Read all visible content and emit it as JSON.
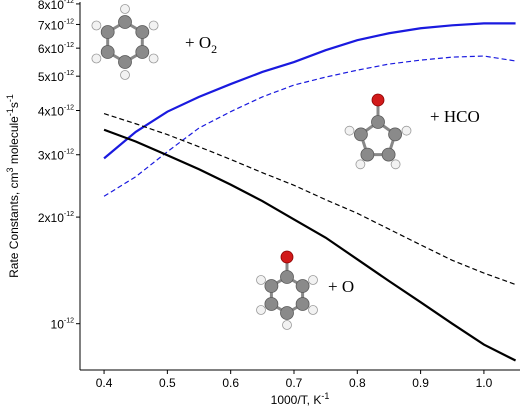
{
  "chart_data": {
    "type": "line",
    "xlabel": [
      "1000/T, K",
      "-1"
    ],
    "ylabel": [
      "Rate Constants, cm",
      "3",
      " molecule",
      "-1",
      "s",
      "-1"
    ],
    "x": [
      0.4,
      0.45,
      0.5,
      0.55,
      0.6,
      0.65,
      0.7,
      0.75,
      0.8,
      0.85,
      0.9,
      0.95,
      1.0,
      1.05
    ],
    "series": [
      {
        "color": "#1a1adf",
        "dashed": false,
        "values": [
          2.93e-12,
          3.48e-12,
          3.97e-12,
          4.37e-12,
          4.75e-12,
          5.14e-12,
          5.48e-12,
          5.92e-12,
          6.32e-12,
          6.61e-12,
          6.83e-12,
          6.96e-12,
          7.05e-12,
          7.05e-12
        ]
      },
      {
        "color": "#1a1adf",
        "dashed": true,
        "values": [
          2.29e-12,
          2.6e-12,
          3.06e-12,
          3.57e-12,
          3.97e-12,
          4.37e-12,
          4.72e-12,
          4.97e-12,
          5.2e-12,
          5.41e-12,
          5.55e-12,
          5.66e-12,
          5.7e-12,
          5.52e-12
        ]
      },
      {
        "color": "#000000",
        "dashed": false,
        "values": [
          3.53e-12,
          3.27e-12,
          2.99e-12,
          2.73e-12,
          2.47e-12,
          2.22e-12,
          1.97e-12,
          1.75e-12,
          1.52e-12,
          1.32e-12,
          1.15e-12,
          1e-12,
          8.73e-13,
          7.87e-13
        ]
      },
      {
        "color": "#000000",
        "dashed": true,
        "values": [
          3.92e-12,
          3.67e-12,
          3.42e-12,
          3.16e-12,
          2.91e-12,
          2.67e-12,
          2.46e-12,
          2.24e-12,
          2.05e-12,
          1.85e-12,
          1.67e-12,
          1.51e-12,
          1.39e-12,
          1.29e-12
        ]
      }
    ],
    "xlim": [
      0.362,
      1.057
    ],
    "xticks": [
      0.4,
      0.5,
      0.6,
      0.7,
      0.8,
      0.9,
      {
        "value": 1.0,
        "label": "1.0"
      }
    ],
    "ylim": [
      7.4e-13,
      8.1e-12
    ],
    "log_y": true,
    "yticks": [
      {
        "value": 1e-12,
        "label": "10",
        "sup": "-12"
      },
      {
        "value": 2e-12,
        "label": "2x10",
        "sup": "-12"
      },
      {
        "value": 3e-12,
        "label": "3x10",
        "sup": "-12"
      },
      {
        "value": 4e-12,
        "label": "4x10",
        "sup": "-12"
      },
      {
        "value": 5e-12,
        "label": "5x10",
        "sup": "-12"
      },
      {
        "value": 6e-12,
        "label": "6x10",
        "sup": "-12"
      },
      {
        "value": 7e-12,
        "label": "7x10",
        "sup": "-12"
      },
      {
        "value": 8e-12,
        "label": "8x10",
        "sup": "-12"
      }
    ],
    "annotations": [
      {
        "text": "+ O",
        "sub": "2"
      },
      {
        "text": "+ HCO"
      },
      {
        "text": "+ O"
      }
    ]
  }
}
